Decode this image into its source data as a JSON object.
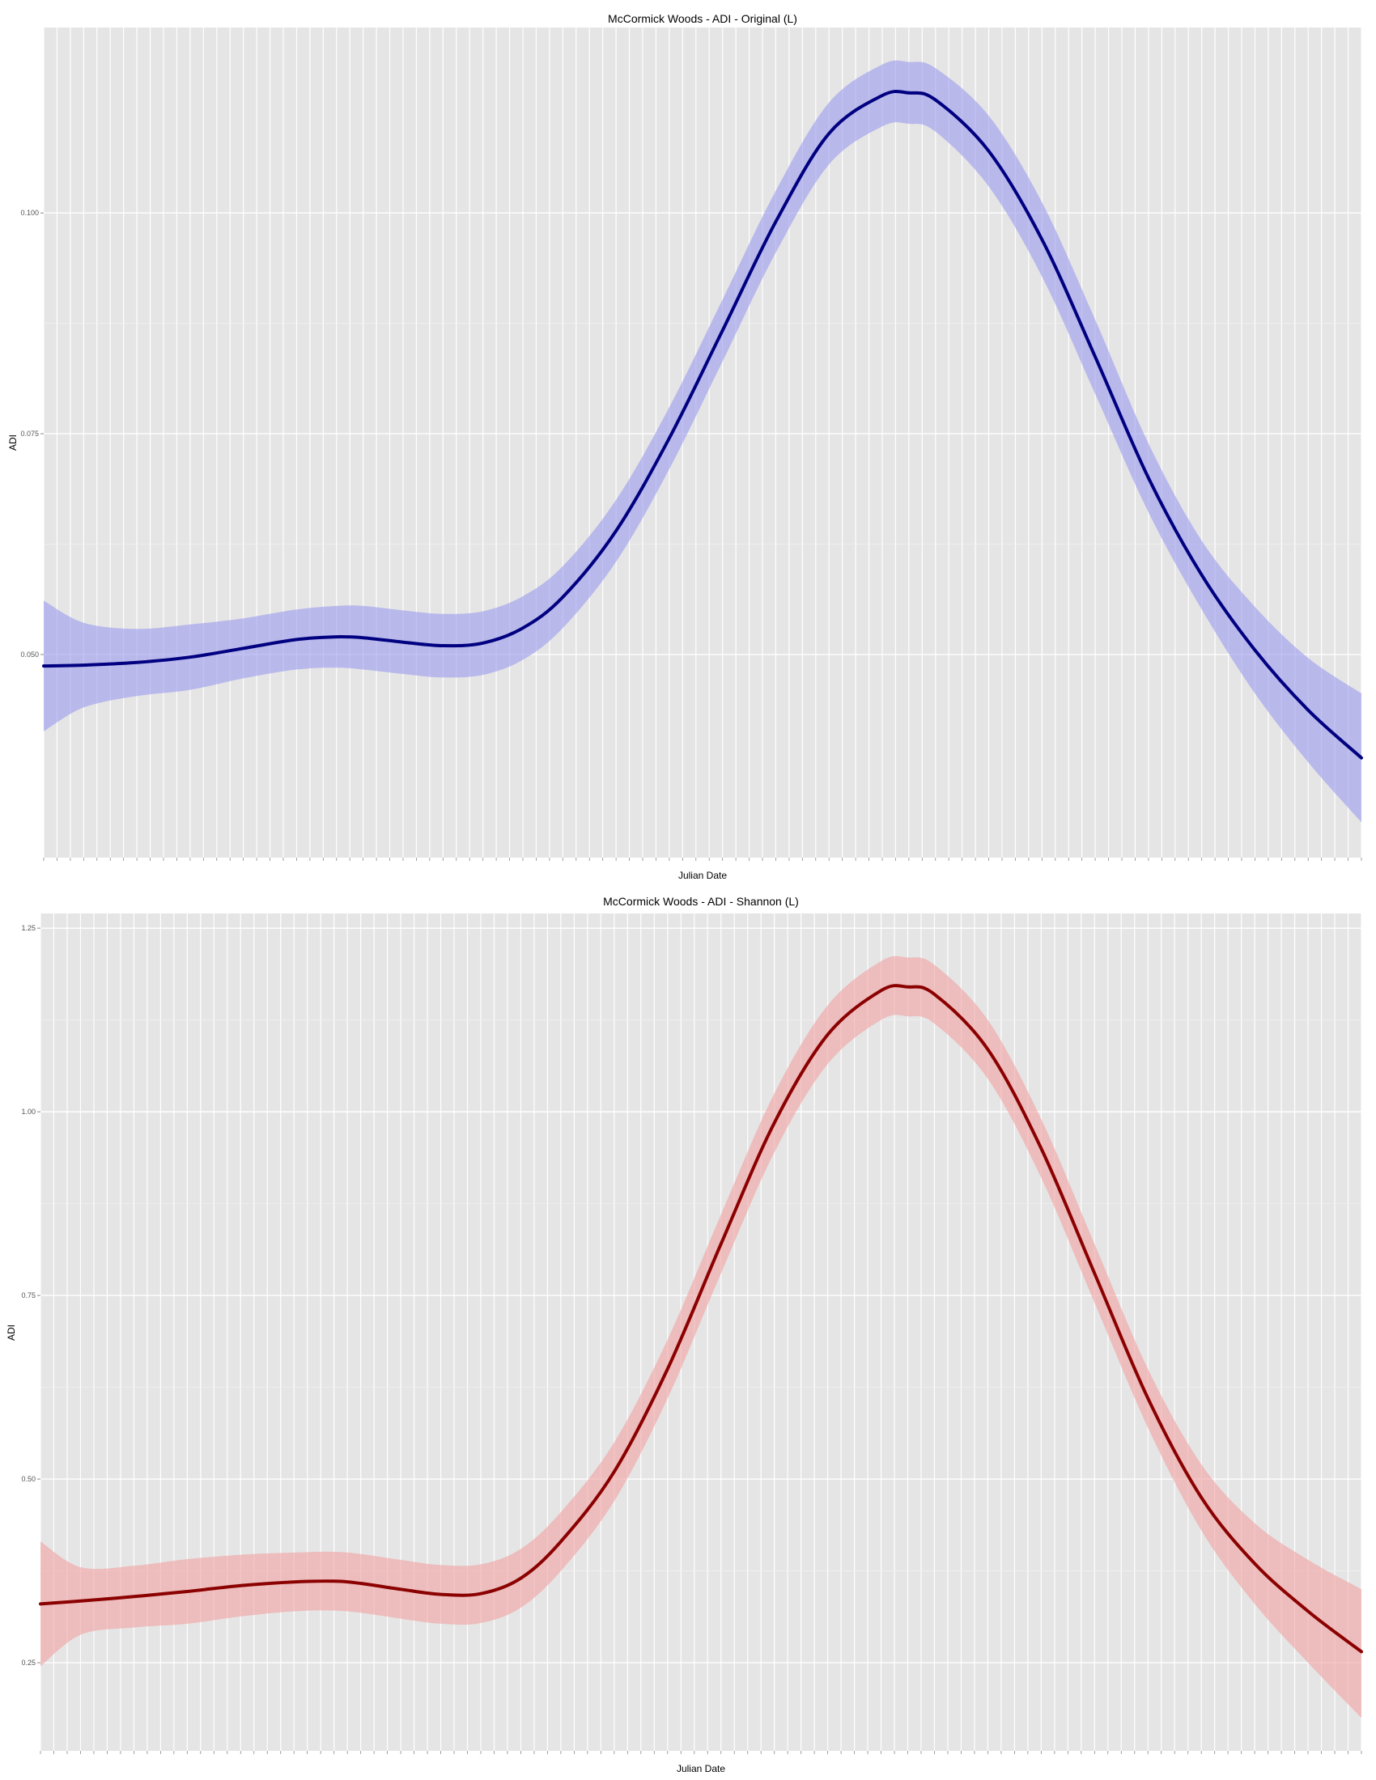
{
  "chart_data": [
    {
      "type": "line",
      "title": "McCormick Woods - ADI - Original (L)",
      "xlabel": "Julian Date",
      "ylabel": "ADI",
      "ylim": [
        0.027,
        0.121
      ],
      "yticks": [
        0.05,
        0.075,
        0.1
      ],
      "ytick_labels": [
        "0.050",
        "0.075",
        "0.100"
      ],
      "xlim": [
        1,
        100
      ],
      "grid": true,
      "legend": "none",
      "line_color": "#000080",
      "band_color": "#9999ee",
      "series": [
        {
          "x": [
            1,
            4,
            8,
            12,
            16,
            20,
            23,
            25,
            28,
            31,
            34,
            37,
            40,
            44,
            48,
            52,
            56,
            60,
            64,
            66,
            68,
            72,
            76,
            80,
            84,
            88,
            92,
            96,
            100
          ],
          "values": [
            0.0487,
            0.0488,
            0.0491,
            0.0497,
            0.0507,
            0.0517,
            0.052,
            0.0519,
            0.0514,
            0.051,
            0.0513,
            0.053,
            0.0565,
            0.064,
            0.0745,
            0.0867,
            0.099,
            0.109,
            0.1133,
            0.1136,
            0.1128,
            0.107,
            0.097,
            0.0837,
            0.07,
            0.059,
            0.0505,
            0.0437,
            0.0383
          ],
          "lower": [
            0.0413,
            0.044,
            0.0453,
            0.046,
            0.0473,
            0.0483,
            0.0485,
            0.0483,
            0.0478,
            0.0474,
            0.0477,
            0.0494,
            0.053,
            0.0605,
            0.071,
            0.0832,
            0.0955,
            0.1055,
            0.1098,
            0.1101,
            0.1092,
            0.103,
            0.0928,
            0.0795,
            0.0661,
            0.0551,
            0.0456,
            0.0378,
            0.031
          ],
          "upper": [
            0.0561,
            0.0536,
            0.0529,
            0.0534,
            0.0541,
            0.0551,
            0.0555,
            0.0555,
            0.055,
            0.0546,
            0.0549,
            0.0566,
            0.06,
            0.0675,
            0.078,
            0.0902,
            0.1025,
            0.1125,
            0.1168,
            0.1171,
            0.1164,
            0.111,
            0.1012,
            0.0879,
            0.0739,
            0.0629,
            0.0554,
            0.0496,
            0.0456
          ]
        }
      ]
    },
    {
      "type": "line",
      "title": "McCormick Woods - ADI - Shannon (L)",
      "xlabel": "Julian Date",
      "ylabel": "ADI",
      "ylim": [
        0.13,
        1.27
      ],
      "yticks": [
        0.25,
        0.5,
        0.75,
        1.0,
        1.25
      ],
      "ytick_labels": [
        "0.25",
        "0.50",
        "0.75",
        "1.00",
        "1.25"
      ],
      "xlim": [
        1,
        100
      ],
      "grid": true,
      "legend": "none",
      "line_color": "#8b0000",
      "band_color": "#f2a0a0",
      "series": [
        {
          "x": [
            1,
            4,
            8,
            12,
            16,
            20,
            23,
            25,
            28,
            31,
            34,
            37,
            40,
            44,
            48,
            52,
            56,
            60,
            64,
            66,
            68,
            72,
            76,
            80,
            84,
            88,
            92,
            96,
            100
          ],
          "values": [
            0.33,
            0.334,
            0.34,
            0.347,
            0.355,
            0.36,
            0.361,
            0.358,
            0.35,
            0.343,
            0.344,
            0.365,
            0.415,
            0.51,
            0.65,
            0.82,
            0.985,
            1.105,
            1.165,
            1.17,
            1.16,
            1.085,
            0.95,
            0.78,
            0.61,
            0.475,
            0.385,
            0.32,
            0.265
          ],
          "lower": [
            0.245,
            0.288,
            0.298,
            0.303,
            0.313,
            0.32,
            0.321,
            0.318,
            0.31,
            0.303,
            0.304,
            0.325,
            0.375,
            0.47,
            0.61,
            0.78,
            0.945,
            1.065,
            1.125,
            1.13,
            1.12,
            1.045,
            0.91,
            0.74,
            0.57,
            0.43,
            0.33,
            0.25,
            0.175
          ],
          "upper": [
            0.415,
            0.38,
            0.382,
            0.391,
            0.397,
            0.4,
            0.401,
            0.398,
            0.39,
            0.383,
            0.384,
            0.405,
            0.455,
            0.55,
            0.69,
            0.86,
            1.025,
            1.145,
            1.205,
            1.21,
            1.2,
            1.125,
            0.99,
            0.82,
            0.65,
            0.52,
            0.44,
            0.39,
            0.35
          ]
        }
      ]
    }
  ]
}
